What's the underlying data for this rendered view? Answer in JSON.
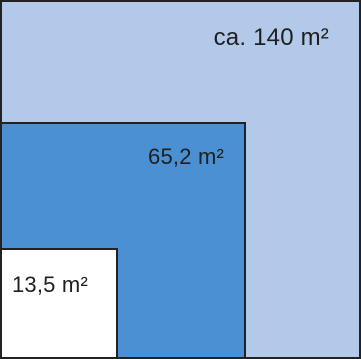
{
  "areas": {
    "large": {
      "label": "ca. 140 m²",
      "color": "#b2c9ea"
    },
    "medium": {
      "label": "65,2 m²",
      "color": "#4a90d2"
    },
    "small": {
      "label": "13,5 m²",
      "color": "#ffffff"
    }
  }
}
